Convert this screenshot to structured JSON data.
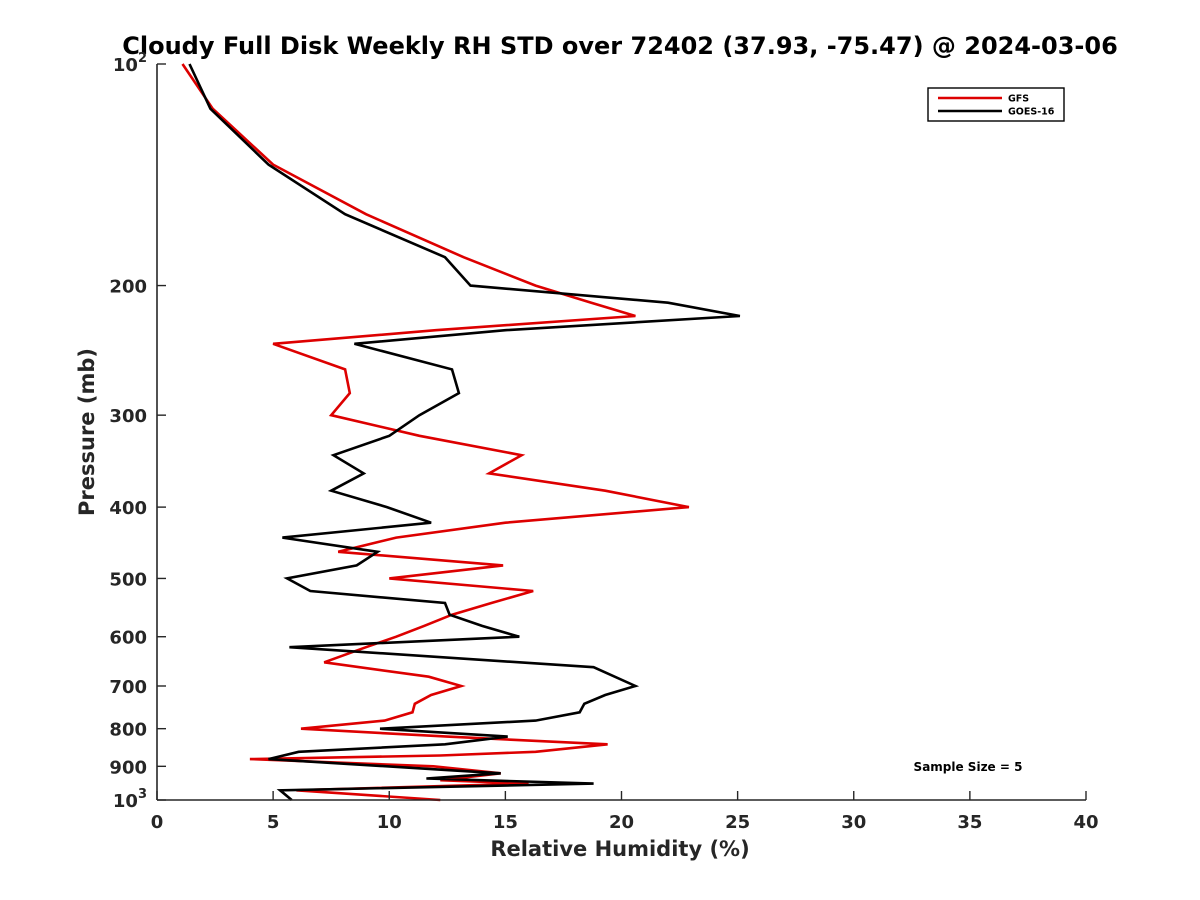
{
  "chart_data": {
    "type": "line",
    "title": "Cloudy Full Disk Weekly RH STD over 72402 (37.93, -75.47) @ 2024-03-06",
    "xlabel": "Relative Humidity (%)",
    "ylabel": "Pressure (mb)",
    "xlim": [
      0,
      40
    ],
    "ylim": [
      100,
      1000
    ],
    "yscale": "log",
    "y_reversed": true,
    "grid": false,
    "legend_position": "top-right",
    "annotation": "Sample Size = 5",
    "x_ticks": [
      0,
      5,
      10,
      15,
      20,
      25,
      30,
      35,
      40
    ],
    "x_tick_labels": [
      "0",
      "5",
      "10",
      "15",
      "20",
      "25",
      "30",
      "35",
      "40"
    ],
    "y_ticks": [
      100,
      200,
      300,
      400,
      500,
      600,
      700,
      800,
      900,
      1000
    ],
    "y_tick_labels": [
      {
        "base": "10",
        "exp": "2"
      },
      {
        "base": "200",
        "exp": ""
      },
      {
        "base": "300",
        "exp": ""
      },
      {
        "base": "400",
        "exp": ""
      },
      {
        "base": "500",
        "exp": ""
      },
      {
        "base": "600",
        "exp": ""
      },
      {
        "base": "700",
        "exp": ""
      },
      {
        "base": "800",
        "exp": ""
      },
      {
        "base": "900",
        "exp": ""
      },
      {
        "base": "10",
        "exp": "3"
      }
    ],
    "series": [
      {
        "name": "GFS",
        "color": "#dd0000",
        "points": [
          [
            1.1,
            100
          ],
          [
            2.4,
            115
          ],
          [
            5.0,
            137
          ],
          [
            9.0,
            160
          ],
          [
            13.2,
            183
          ],
          [
            16.3,
            200
          ],
          [
            18.7,
            211
          ],
          [
            20.6,
            220
          ],
          [
            12.0,
            230
          ],
          [
            5.0,
            240
          ],
          [
            8.1,
            260
          ],
          [
            8.3,
            280
          ],
          [
            7.5,
            300
          ],
          [
            11.3,
            320
          ],
          [
            15.7,
            340
          ],
          [
            14.3,
            360
          ],
          [
            19.3,
            380
          ],
          [
            22.9,
            400
          ],
          [
            15.0,
            420
          ],
          [
            10.3,
            440
          ],
          [
            7.8,
            460
          ],
          [
            14.9,
            480
          ],
          [
            10.0,
            500
          ],
          [
            16.2,
            520
          ],
          [
            14.4,
            540
          ],
          [
            12.7,
            560
          ],
          [
            11.5,
            580
          ],
          [
            10.3,
            600
          ],
          [
            9.0,
            620
          ],
          [
            7.2,
            650
          ],
          [
            11.7,
            680
          ],
          [
            13.1,
            700
          ],
          [
            11.8,
            720
          ],
          [
            11.1,
            740
          ],
          [
            11.0,
            760
          ],
          [
            9.8,
            780
          ],
          [
            6.2,
            800
          ],
          [
            12.5,
            820
          ],
          [
            19.4,
            840
          ],
          [
            16.3,
            860
          ],
          [
            12.2,
            870
          ],
          [
            4.0,
            880
          ],
          [
            11.9,
            900
          ],
          [
            14.8,
            920
          ],
          [
            12.2,
            940
          ],
          [
            16.0,
            950
          ],
          [
            6.0,
            970
          ],
          [
            12.2,
            1000
          ]
        ]
      },
      {
        "name": "GOES-16",
        "color": "#000000",
        "points": [
          [
            1.4,
            100
          ],
          [
            2.3,
            115
          ],
          [
            4.8,
            137
          ],
          [
            8.1,
            160
          ],
          [
            12.4,
            183
          ],
          [
            13.5,
            200
          ],
          [
            22.0,
            211
          ],
          [
            25.1,
            220
          ],
          [
            15.0,
            230
          ],
          [
            8.5,
            240
          ],
          [
            12.7,
            260
          ],
          [
            13.0,
            280
          ],
          [
            11.3,
            300
          ],
          [
            10.0,
            320
          ],
          [
            7.6,
            340
          ],
          [
            8.9,
            360
          ],
          [
            7.5,
            380
          ],
          [
            9.9,
            400
          ],
          [
            11.8,
            420
          ],
          [
            5.4,
            440
          ],
          [
            9.5,
            460
          ],
          [
            8.6,
            480
          ],
          [
            5.6,
            500
          ],
          [
            6.6,
            520
          ],
          [
            12.4,
            540
          ],
          [
            12.6,
            560
          ],
          [
            14.0,
            580
          ],
          [
            15.6,
            600
          ],
          [
            5.7,
            620
          ],
          [
            18.8,
            660
          ],
          [
            20.6,
            700
          ],
          [
            19.3,
            720
          ],
          [
            18.4,
            740
          ],
          [
            18.2,
            760
          ],
          [
            16.3,
            780
          ],
          [
            9.6,
            800
          ],
          [
            15.1,
            820
          ],
          [
            12.4,
            840
          ],
          [
            6.1,
            860
          ],
          [
            4.8,
            880
          ],
          [
            12.4,
            910
          ],
          [
            14.8,
            920
          ],
          [
            11.6,
            935
          ],
          [
            18.8,
            950
          ],
          [
            5.3,
            970
          ],
          [
            5.8,
            1000
          ]
        ]
      }
    ]
  }
}
